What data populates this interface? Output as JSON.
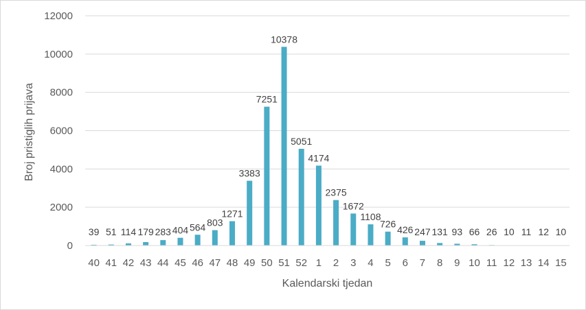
{
  "chart_data": {
    "type": "bar",
    "title": "",
    "xlabel": "Kalendarski tjedan",
    "ylabel": "Broj pristiglih prijava",
    "categories": [
      "40",
      "41",
      "42",
      "43",
      "44",
      "45",
      "46",
      "47",
      "48",
      "49",
      "50",
      "51",
      "52",
      "1",
      "2",
      "3",
      "4",
      "5",
      "6",
      "7",
      "8",
      "9",
      "10",
      "11",
      "12",
      "13",
      "14",
      "15"
    ],
    "values": [
      39,
      51,
      114,
      179,
      283,
      404,
      564,
      803,
      1271,
      3383,
      7251,
      10378,
      5051,
      4174,
      2375,
      1672,
      1108,
      726,
      426,
      247,
      131,
      93,
      66,
      26,
      10,
      11,
      12,
      10
    ],
    "ylim": [
      0,
      12000
    ],
    "yticks": [
      0,
      2000,
      4000,
      6000,
      8000,
      10000,
      12000
    ],
    "grid": true,
    "bar_color": "#4BACC6",
    "legend": "none"
  }
}
